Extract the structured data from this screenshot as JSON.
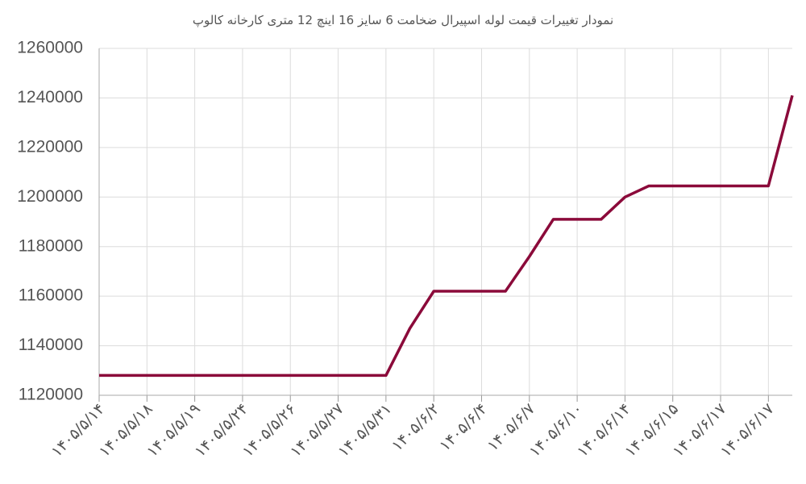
{
  "chart_data": {
    "type": "line",
    "title": "نمودار تغییرات قیمت لوله اسپیرال ضخامت 6 سایز 16 اینچ 12 متری کارخانه کالوپ",
    "categories": [
      "۱۴۰۵/۵/۱۴",
      null,
      "۱۴۰۵/۵/۱۸",
      null,
      "۱۴۰۵/۵/۱۹",
      null,
      "۱۴۰۵/۵/۲۴",
      null,
      "۱۴۰۵/۵/۲۶",
      null,
      "۱۴۰۵/۵/۲۷",
      null,
      "۱۴۰۵/۵/۳۱",
      null,
      "۱۴۰۵/۶/۲",
      null,
      "۱۴۰۵/۶/۴",
      null,
      "۱۴۰۵/۶/۷",
      null,
      "۱۴۰۵/۶/۱۰",
      null,
      "۱۴۰۵/۶/۱۴",
      null,
      "۱۴۰۵/۶/۱۵",
      null,
      "۱۴۰۵/۶/۱۷",
      null,
      "۱۴۰۵/۶/۱۷",
      null
    ],
    "values": [
      1128000,
      1128000,
      1128000,
      1128000,
      1128000,
      1128000,
      1128000,
      1128000,
      1128000,
      1128000,
      1128000,
      1128000,
      1128000,
      1147000,
      1162000,
      1162000,
      1162000,
      1162000,
      1176000,
      1191000,
      1191000,
      1191000,
      1200000,
      1204500,
      1204500,
      1204500,
      1204500,
      1204500,
      1204500,
      1241000
    ],
    "color": "#8b0a3a",
    "ylim": [
      1120000,
      1260000
    ],
    "yticks": [
      1120000,
      1140000,
      1160000,
      1180000,
      1200000,
      1220000,
      1240000,
      1260000
    ],
    "grid": true
  }
}
